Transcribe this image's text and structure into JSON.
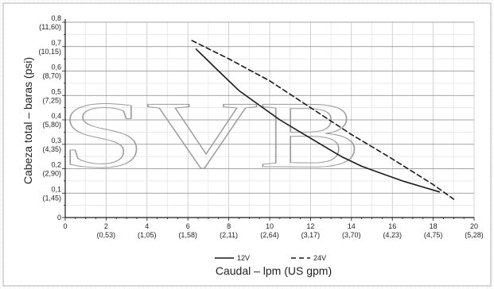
{
  "watermark": {
    "text": "SVB"
  },
  "chart_data": {
    "type": "line",
    "xlabel": "Caudal – lpm (US gpm)",
    "ylabel": "Cabeza total – baras (psi)",
    "xlim": [
      0,
      20
    ],
    "ylim": [
      0,
      0.8
    ],
    "grid": true,
    "legend_placement": "bottom-center",
    "x_ticks": [
      {
        "value": 0,
        "label": "0",
        "sub": ""
      },
      {
        "value": 2,
        "label": "2",
        "sub": "(0,53)"
      },
      {
        "value": 4,
        "label": "4",
        "sub": "(1,05)"
      },
      {
        "value": 6,
        "label": "6",
        "sub": "(1,58)"
      },
      {
        "value": 8,
        "label": "8",
        "sub": "(2,11)"
      },
      {
        "value": 10,
        "label": "10",
        "sub": "(2,64)"
      },
      {
        "value": 12,
        "label": "12",
        "sub": "(3,17)"
      },
      {
        "value": 14,
        "label": "14",
        "sub": "(3,70)"
      },
      {
        "value": 16,
        "label": "16",
        "sub": "(4,23)"
      },
      {
        "value": 18,
        "label": "18",
        "sub": "(4,75)"
      },
      {
        "value": 20,
        "label": "20",
        "sub": "(5,28)"
      }
    ],
    "y_ticks": [
      {
        "value": 0,
        "label": "0",
        "sub": ""
      },
      {
        "value": 0.1,
        "label": "0,1",
        "sub": "(1,45)"
      },
      {
        "value": 0.2,
        "label": "0,2",
        "sub": "(2,90)"
      },
      {
        "value": 0.3,
        "label": "0,3",
        "sub": "(4,35)"
      },
      {
        "value": 0.4,
        "label": "0,4",
        "sub": "(5,80)"
      },
      {
        "value": 0.5,
        "label": "0,5",
        "sub": "(7,25)"
      },
      {
        "value": 0.6,
        "label": "0,6",
        "sub": "(8,70)"
      },
      {
        "value": 0.7,
        "label": "0,7",
        "sub": "(10,15)"
      },
      {
        "value": 0.8,
        "label": "0,8",
        "sub": "(11,60)"
      }
    ],
    "series": [
      {
        "name": "12V",
        "style": "solid",
        "color": "#1a1a1a",
        "x": [
          6.4,
          7.5,
          8.5,
          9.5,
          10.5,
          11.5,
          12.5,
          13.5,
          14.5,
          15.5,
          16.5,
          17.5,
          18.3
        ],
        "y": [
          0.69,
          0.6,
          0.52,
          0.46,
          0.4,
          0.35,
          0.3,
          0.25,
          0.21,
          0.18,
          0.15,
          0.125,
          0.105
        ]
      },
      {
        "name": "24V",
        "style": "dashed",
        "color": "#1a1a1a",
        "x": [
          6.2,
          8,
          10,
          12,
          14,
          16,
          18,
          19
        ],
        "y": [
          0.725,
          0.65,
          0.56,
          0.45,
          0.34,
          0.24,
          0.135,
          0.075
        ]
      }
    ]
  }
}
